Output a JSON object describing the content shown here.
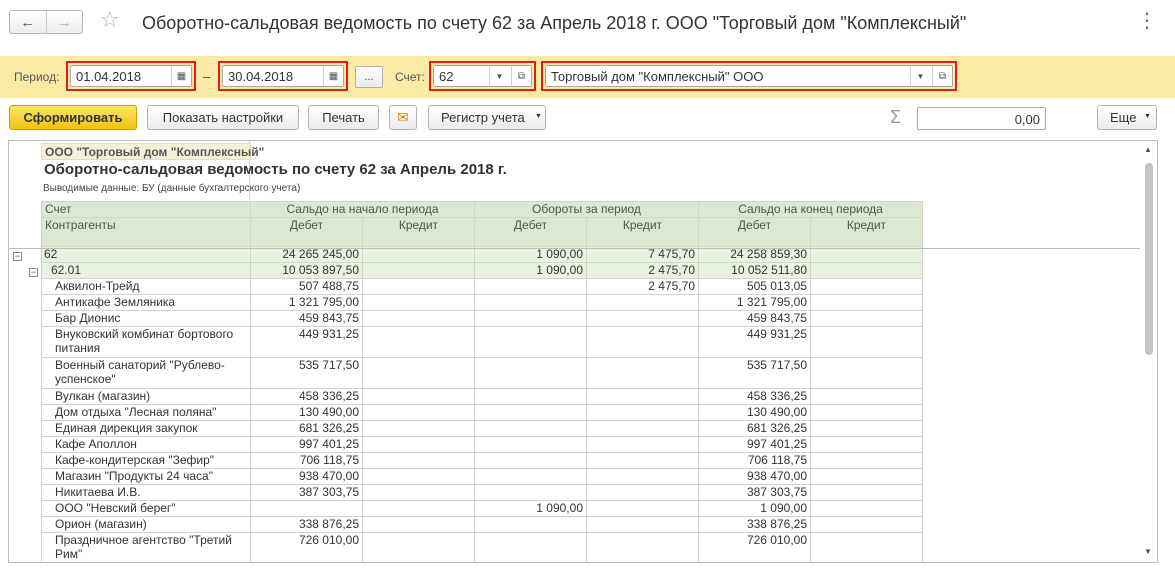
{
  "titlebar": {
    "back": "←",
    "forward": "→",
    "favorite": "☆",
    "title": "Оборотно-сальдовая ведомость по счету 62 за Апрель 2018 г. ООО \"Торговый дом \"Комплексный\"",
    "menu": "⋮"
  },
  "params": {
    "period_label": "Период:",
    "date_from": "01.04.2018",
    "dash": "–",
    "date_to": "30.04.2018",
    "dots": "...",
    "account_label": "Счет:",
    "account": "62",
    "counterparty": "Торговый дом \"Комплексный\" ООО",
    "highlight_color": "#e01c1c"
  },
  "toolbar": {
    "generate": "Сформировать",
    "show_settings": "Показать настройки",
    "print": "Печать",
    "mail_icon": "✉",
    "register": "Регистр учета",
    "sigma": "Σ",
    "sum_value": "0,00",
    "more": "Еще"
  },
  "report": {
    "org": "ООО \"Торговый дом \"Комплексный\"",
    "title": "Оборотно-сальдовая ведомость по счету 62 за Апрель 2018 г.",
    "subtitle": "Выводимые данные:   БУ (данные бухгалтерского учета)",
    "headers": {
      "account": "Счет",
      "counterparties": "Контрагенты",
      "opening": "Сальдо на начало периода",
      "turnover": "Обороты за период",
      "closing": "Сальдо на конец периода",
      "debit": "Дебет",
      "credit": "Кредит"
    },
    "rows": [
      {
        "level": 1,
        "name": "62",
        "c1": "24 265 245,00",
        "c2": "",
        "c3": "1 090,00",
        "c4": "7 475,70",
        "c5": "24 258 859,30",
        "c6": "",
        "rows": 1
      },
      {
        "level": 2,
        "name": "62.01",
        "c1": "10 053 897,50",
        "c2": "",
        "c3": "1 090,00",
        "c4": "2 475,70",
        "c5": "10 052 511,80",
        "c6": "",
        "rows": 1
      },
      {
        "level": 3,
        "name": "Аквилон-Трейд",
        "c1": "507 488,75",
        "c2": "",
        "c3": "",
        "c4": "2 475,70",
        "c5": "505 013,05",
        "c6": "",
        "rows": 1
      },
      {
        "level": 3,
        "name": "Антикафе Земляника",
        "c1": "1 321 795,00",
        "c2": "",
        "c3": "",
        "c4": "",
        "c5": "1 321 795,00",
        "c6": "",
        "rows": 1
      },
      {
        "level": 3,
        "name": "Бар Дионис",
        "c1": "459 843,75",
        "c2": "",
        "c3": "",
        "c4": "",
        "c5": "459 843,75",
        "c6": "",
        "rows": 1
      },
      {
        "level": 3,
        "name": "Внуковский комбинат бортового питания",
        "c1": "449 931,25",
        "c2": "",
        "c3": "",
        "c4": "",
        "c5": "449 931,25",
        "c6": "",
        "rows": 2
      },
      {
        "level": 3,
        "name": "Военный санаторий \"Рублево-успенское\"",
        "c1": "535 717,50",
        "c2": "",
        "c3": "",
        "c4": "",
        "c5": "535 717,50",
        "c6": "",
        "rows": 2
      },
      {
        "level": 3,
        "name": "Вулкан (магазин)",
        "c1": "458 336,25",
        "c2": "",
        "c3": "",
        "c4": "",
        "c5": "458 336,25",
        "c6": "",
        "rows": 1
      },
      {
        "level": 3,
        "name": "Дом отдыха \"Лесная поляна\"",
        "c1": "130 490,00",
        "c2": "",
        "c3": "",
        "c4": "",
        "c5": "130 490,00",
        "c6": "",
        "rows": 1
      },
      {
        "level": 3,
        "name": "Единая дирекция закупок",
        "c1": "681 326,25",
        "c2": "",
        "c3": "",
        "c4": "",
        "c5": "681 326,25",
        "c6": "",
        "rows": 1
      },
      {
        "level": 3,
        "name": "Кафе Аполлон",
        "c1": "997 401,25",
        "c2": "",
        "c3": "",
        "c4": "",
        "c5": "997 401,25",
        "c6": "",
        "rows": 1
      },
      {
        "level": 3,
        "name": "Кафе-кондитерская \"Зефир\"",
        "c1": "706 118,75",
        "c2": "",
        "c3": "",
        "c4": "",
        "c5": "706 118,75",
        "c6": "",
        "rows": 1
      },
      {
        "level": 3,
        "name": "Магазин \"Продукты 24 часа\"",
        "c1": "938 470,00",
        "c2": "",
        "c3": "",
        "c4": "",
        "c5": "938 470,00",
        "c6": "",
        "rows": 1
      },
      {
        "level": 3,
        "name": "Никитаева И.В.",
        "c1": "387 303,75",
        "c2": "",
        "c3": "",
        "c4": "",
        "c5": "387 303,75",
        "c6": "",
        "rows": 1
      },
      {
        "level": 3,
        "name": "ООО \"Невский берег\"",
        "c1": "",
        "c2": "",
        "c3": "1 090,00",
        "c4": "",
        "c5": "1 090,00",
        "c6": "",
        "rows": 1
      },
      {
        "level": 3,
        "name": "Орион (магазин)",
        "c1": "338 876,25",
        "c2": "",
        "c3": "",
        "c4": "",
        "c5": "338 876,25",
        "c6": "",
        "rows": 1
      },
      {
        "level": 3,
        "name": "Праздничное агентство \"Третий Рим\"",
        "c1": "726 010,00",
        "c2": "",
        "c3": "",
        "c4": "",
        "c5": "726 010,00",
        "c6": "",
        "rows": 2
      }
    ]
  }
}
